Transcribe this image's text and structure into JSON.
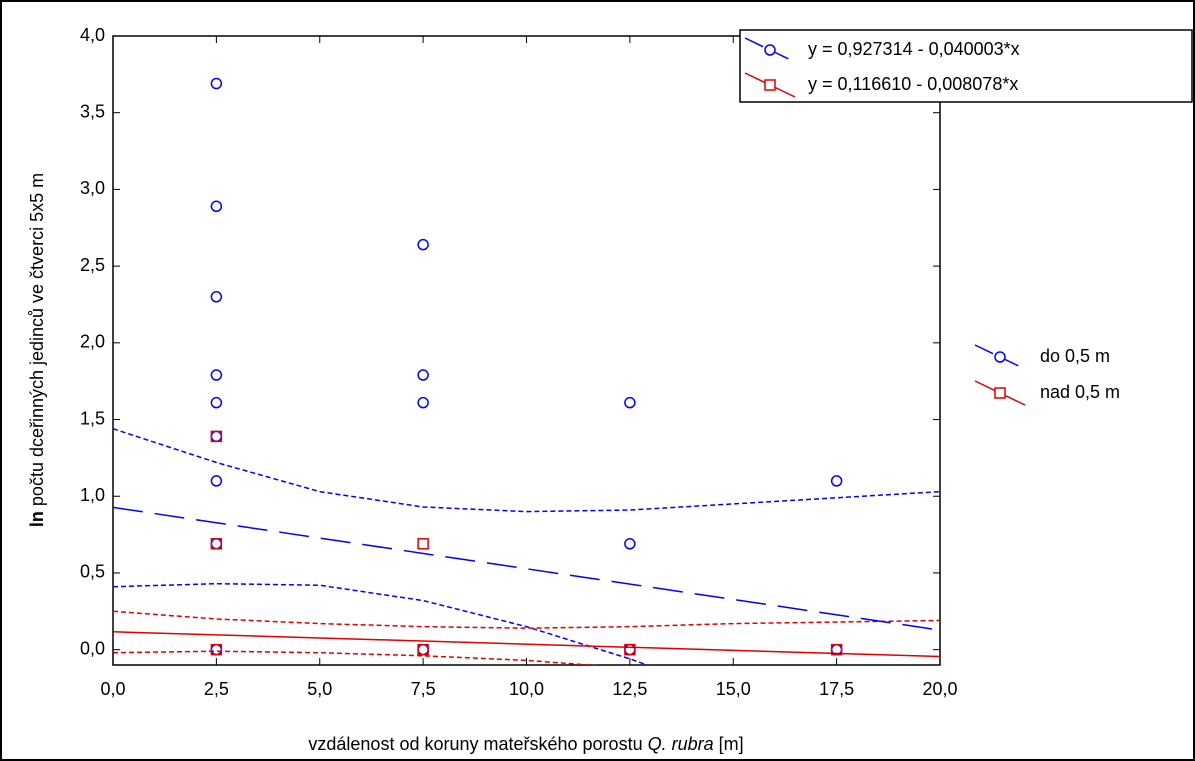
{
  "chart_data": {
    "type": "scatter",
    "x_label": [
      "vzdálenost od koruny mateřského porostu ",
      "Q. rubra",
      " [m]"
    ],
    "y_label": [
      "ln",
      " počtu dceřinných jedinců ve čtverci 5x5 m"
    ],
    "xlim": [
      0,
      20
    ],
    "ylim": [
      -0.1,
      4.0
    ],
    "xticks": [
      {
        "value": 0,
        "label": "0,0"
      },
      {
        "value": 2.5,
        "label": "2,5"
      },
      {
        "value": 5,
        "label": "5,0"
      },
      {
        "value": 7.5,
        "label": "7,5"
      },
      {
        "value": 10,
        "label": "10,0"
      },
      {
        "value": 12.5,
        "label": "12,5"
      },
      {
        "value": 15,
        "label": "15,0"
      },
      {
        "value": 17.5,
        "label": "17,5"
      },
      {
        "value": 20,
        "label": "20,0"
      }
    ],
    "yticks": [
      {
        "value": 0,
        "label": "0,0"
      },
      {
        "value": 0.5,
        "label": "0,5"
      },
      {
        "value": 1,
        "label": "1,0"
      },
      {
        "value": 1.5,
        "label": "1,5"
      },
      {
        "value": 2,
        "label": "2,0"
      },
      {
        "value": 2.5,
        "label": "2,5"
      },
      {
        "value": 3,
        "label": "3,0"
      },
      {
        "value": 3.5,
        "label": "3,5"
      },
      {
        "value": 4,
        "label": "4,0"
      }
    ],
    "series": [
      {
        "name": "do 0,5 m",
        "color": "#0000ff",
        "marker": "circle",
        "x": [
          2.5,
          2.5,
          2.5,
          2.5,
          2.5,
          2.5,
          2.5,
          2.5,
          2.5,
          7.5,
          7.5,
          7.5,
          7.5,
          12.5,
          12.5,
          12.5,
          17.5,
          17.5
        ],
        "values": [
          3.69,
          2.89,
          2.3,
          1.79,
          1.61,
          1.39,
          1.1,
          0.69,
          0,
          2.64,
          1.79,
          1.61,
          0,
          1.61,
          0.69,
          0,
          1.1,
          0
        ]
      },
      {
        "name": "nad 0,5 m",
        "color": "#e00000",
        "marker": "square",
        "x": [
          2.5,
          2.5,
          2.5,
          7.5,
          7.5,
          12.5,
          17.5
        ],
        "values": [
          1.39,
          0.69,
          0,
          0.69,
          0,
          0,
          0
        ]
      }
    ],
    "fits": [
      {
        "label": "y = 0,927314 - 0,040003*x",
        "color": "#0000ff",
        "marker": "circle",
        "line_style": "long-dash",
        "x": [
          0,
          20
        ],
        "values": [
          0.927314,
          0.127254
        ]
      },
      {
        "label": "y = 0,116610 - 0,008078*x",
        "color": "#e00000",
        "marker": "square",
        "line_style": "solid",
        "x": [
          0,
          20
        ],
        "values": [
          0.11661,
          -0.04495
        ]
      }
    ],
    "bands": [
      {
        "color": "#0000ff",
        "x": [
          0,
          2.5,
          5,
          7.5,
          10,
          12.5,
          15,
          17.5,
          20
        ],
        "upper": [
          1.44,
          1.22,
          1.03,
          0.93,
          0.9,
          0.91,
          0.95,
          0.99,
          1.03
        ],
        "lower": [
          0.41,
          0.43,
          0.42,
          0.32,
          0.15,
          -0.06,
          -0.3,
          -0.53,
          -0.78
        ]
      },
      {
        "color": "#e00000",
        "x": [
          0,
          2.5,
          5,
          7.5,
          10,
          12.5,
          15,
          17.5,
          20
        ],
        "upper": [
          0.25,
          0.2,
          0.17,
          0.15,
          0.14,
          0.15,
          0.17,
          0.18,
          0.19
        ],
        "lower": [
          -0.02,
          -0.01,
          -0.02,
          -0.04,
          -0.07,
          -0.12,
          -0.18,
          -0.23,
          -0.28
        ]
      }
    ]
  }
}
